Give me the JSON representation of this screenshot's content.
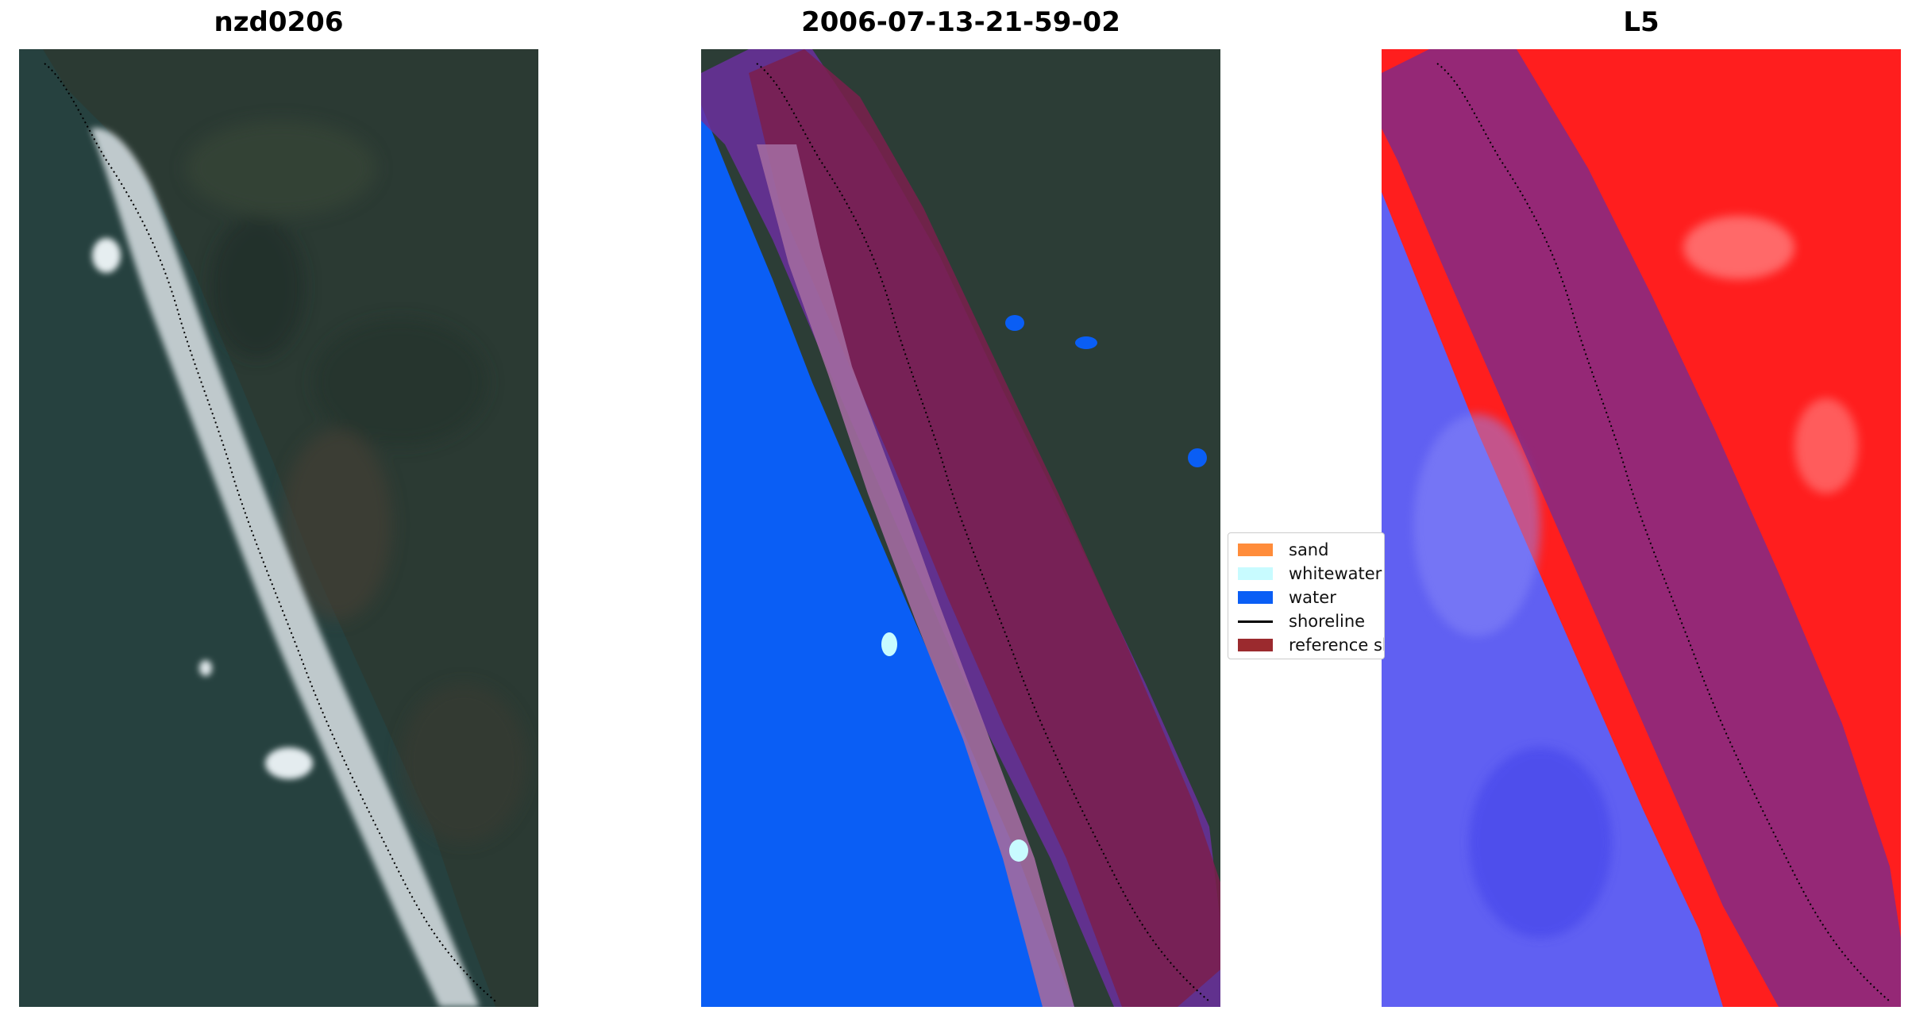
{
  "panels": {
    "rgb": {
      "title": "nzd0206"
    },
    "classified": {
      "title": "2006-07-13-21-59-02"
    },
    "index": {
      "title": "L5"
    }
  },
  "legend": {
    "items": [
      {
        "label": "sand",
        "color": "#ff8c3a"
      },
      {
        "label": "whitewater",
        "color": "#c8fbff"
      },
      {
        "label": "water",
        "color": "#0a5ef5"
      },
      {
        "label": "shoreline",
        "color": "#000000"
      },
      {
        "label": "reference sh",
        "color": "#9b2a2e"
      }
    ]
  },
  "colors": {
    "ocean": "#24414a",
    "land": "#2a3b33",
    "water_class": "#0a5ef5",
    "sand_overlay": "#a26aa0",
    "buffer_band": "#7b1f4c",
    "index_land": "#ff1e1e",
    "index_water": "#5a5af0"
  }
}
